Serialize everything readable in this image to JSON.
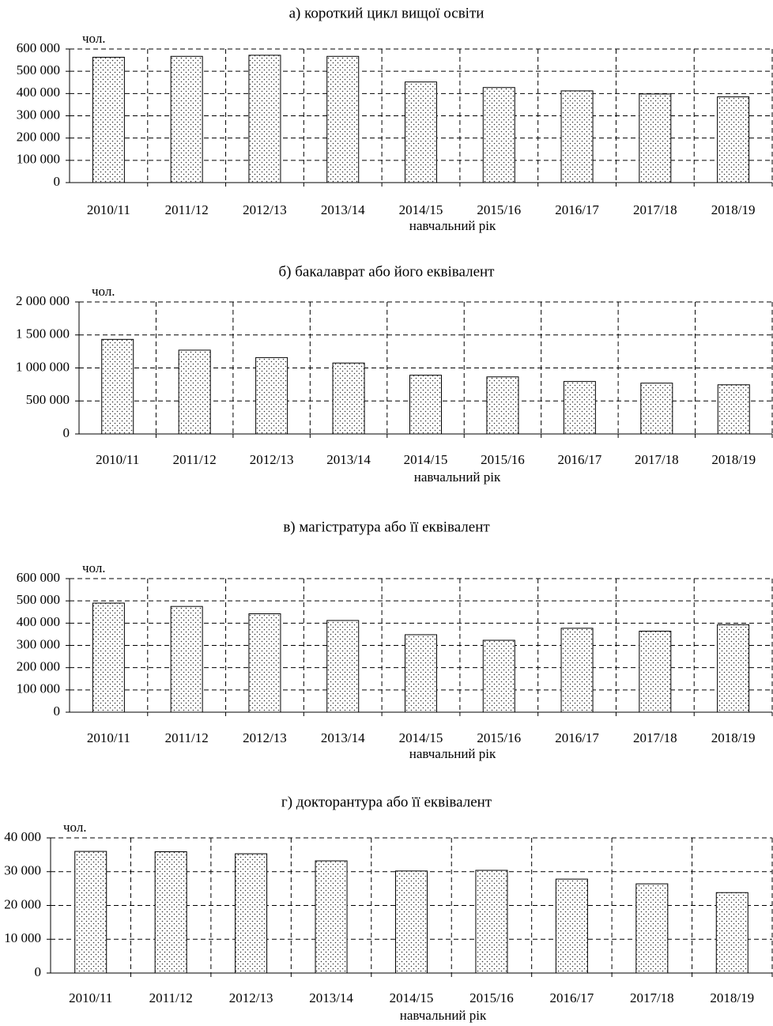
{
  "chart_data": [
    {
      "type": "bar",
      "title": "а) короткий цикл вищої освіти",
      "y_label": "чол.",
      "x_label": "навчальний рік",
      "categories": [
        "2010/11",
        "2011/12",
        "2012/13",
        "2013/14",
        "2014/15",
        "2015/16",
        "2016/17",
        "2017/18",
        "2018/19"
      ],
      "values": [
        563000,
        567000,
        572000,
        567000,
        452000,
        427000,
        412000,
        398000,
        385000
      ],
      "ylim": [
        0,
        600000
      ],
      "yticks": [
        0,
        {
          "value": 100000,
          "label": "100 000"
        },
        {
          "value": 200000,
          "label": "200 000"
        },
        {
          "value": 300000,
          "label": "300 000"
        },
        {
          "value": 400000,
          "label": "400 000"
        },
        {
          "value": 500000,
          "label": "500 000"
        },
        {
          "value": 600000,
          "label": "600 000"
        }
      ],
      "grid": true
    },
    {
      "type": "bar",
      "title": "б) бакалаврат або його еквівалент",
      "y_label": "чол.",
      "x_label": "навчальний рік",
      "categories": [
        "2010/11",
        "2011/12",
        "2012/13",
        "2013/14",
        "2014/15",
        "2015/16",
        "2016/17",
        "2017/18",
        "2018/19"
      ],
      "values": [
        1433000,
        1270000,
        1157000,
        1075000,
        890000,
        865000,
        795000,
        770000,
        745000
      ],
      "ylim": [
        0,
        2000000
      ],
      "yticks": [
        0,
        {
          "value": 500000,
          "label": "500 000"
        },
        {
          "value": 1000000,
          "label": "1 000 000"
        },
        {
          "value": 1500000,
          "label": "1 500 000"
        },
        {
          "value": 2000000,
          "label": "2 000 000"
        }
      ],
      "grid": true
    },
    {
      "type": "bar",
      "title": "в) магістратура або її еквівалент",
      "y_label": "чол.",
      "x_label": "навчальний рік",
      "categories": [
        "2010/11",
        "2011/12",
        "2012/13",
        "2013/14",
        "2014/15",
        "2015/16",
        "2016/17",
        "2017/18",
        "2018/19"
      ],
      "values": [
        490000,
        475000,
        442000,
        412000,
        348000,
        323000,
        377000,
        364000,
        393000
      ],
      "ylim": [
        0,
        600000
      ],
      "yticks": [
        0,
        {
          "value": 100000,
          "label": "100 000"
        },
        {
          "value": 200000,
          "label": "200 000"
        },
        {
          "value": 300000,
          "label": "300 000"
        },
        {
          "value": 400000,
          "label": "400 000"
        },
        {
          "value": 500000,
          "label": "500 000"
        },
        {
          "value": 600000,
          "label": "600 000"
        }
      ],
      "grid": true
    },
    {
      "type": "bar",
      "title": "г) докторантура або її еквівалент",
      "y_label": "чол.",
      "x_label": "навчальний рік",
      "categories": [
        "2010/11",
        "2011/12",
        "2012/13",
        "2013/14",
        "2014/15",
        "2015/16",
        "2016/17",
        "2017/18",
        "2018/19"
      ],
      "values": [
        36000,
        35900,
        35300,
        33200,
        30200,
        30400,
        27800,
        26400,
        23800
      ],
      "ylim": [
        0,
        40000
      ],
      "yticks": [
        0,
        {
          "value": 10000,
          "label": "10 000"
        },
        {
          "value": 20000,
          "label": "20 000"
        },
        {
          "value": 30000,
          "label": "30 000"
        },
        {
          "value": 40000,
          "label": "40 000"
        }
      ],
      "grid": true
    }
  ]
}
